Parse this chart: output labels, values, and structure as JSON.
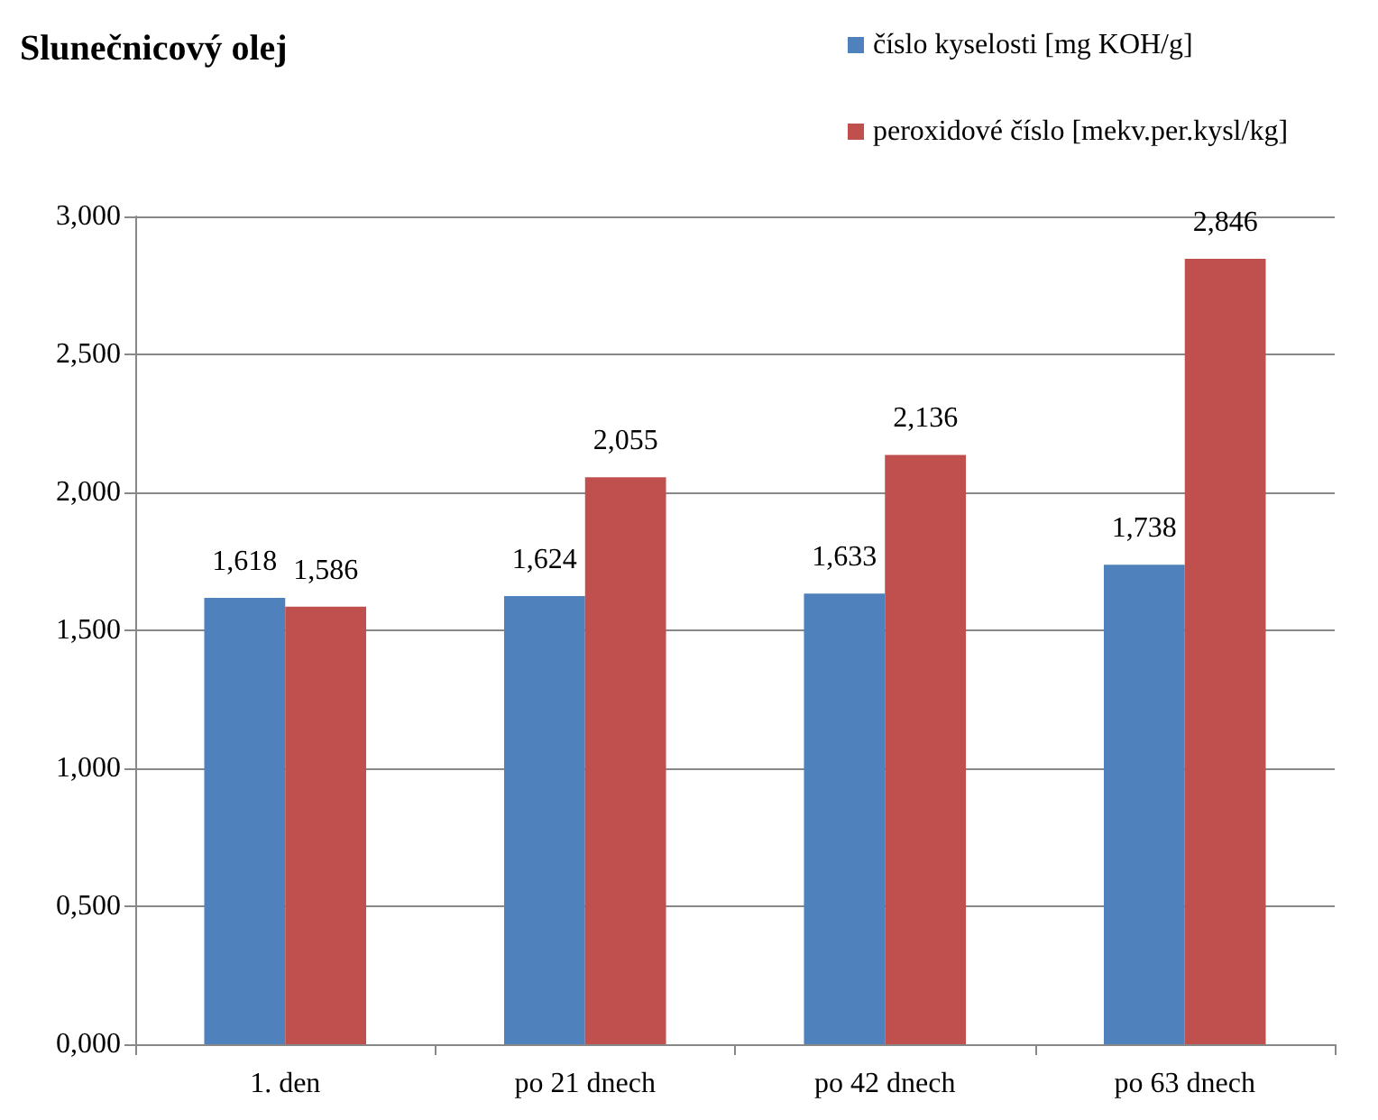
{
  "chart_data": {
    "type": "bar",
    "title": "Slunečnicový olej",
    "categories": [
      "1. den",
      "po 21 dnech",
      "po 42 dnech",
      "po 63 dnech"
    ],
    "series": [
      {
        "name": "číslo kyselosti [mg KOH/g]",
        "color": "#4f81bd",
        "values": [
          1.618,
          1.624,
          1.633,
          1.738
        ],
        "value_labels": [
          "1,618",
          "1,624",
          "1,633",
          "1,738"
        ]
      },
      {
        "name": "peroxidové číslo [mekv.per.kysl/kg]",
        "color": "#c0504d",
        "values": [
          1.586,
          2.055,
          2.136,
          2.846
        ],
        "value_labels": [
          "1,586",
          "2,055",
          "2,136",
          "2,846"
        ]
      }
    ],
    "ylim": [
      0,
      3
    ],
    "yticks": [
      {
        "value": 0,
        "label": "0,000"
      },
      {
        "value": 0.5,
        "label": "0,500"
      },
      {
        "value": 1,
        "label": "1,000"
      },
      {
        "value": 1.5,
        "label": "1,500"
      },
      {
        "value": 2,
        "label": "2,000"
      },
      {
        "value": 2.5,
        "label": "2,500"
      },
      {
        "value": 3,
        "label": "3,000"
      }
    ],
    "grid": "y",
    "legend": "top right"
  }
}
